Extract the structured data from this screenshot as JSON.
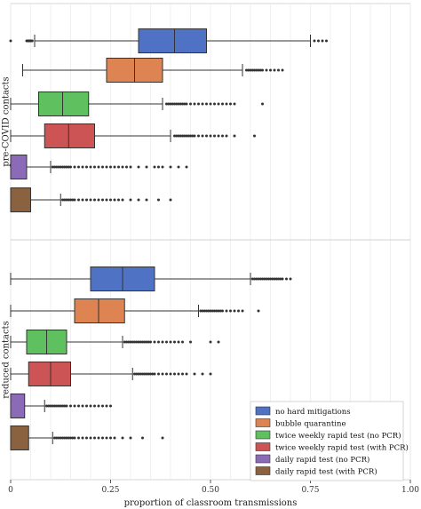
{
  "chart_data": {
    "type": "boxplot",
    "orientation": "horizontal",
    "xlabel": "proportion of classroom transmissions",
    "xlim": [
      0,
      1.0
    ],
    "xticks": [
      0,
      0.25,
      0.5,
      0.75,
      1.0
    ],
    "xtick_labels": [
      "0",
      "0.25",
      "0.50",
      "0.75",
      "1.00"
    ],
    "grid": "vertical",
    "legend_position": "bottom-right",
    "colors": {
      "no hard mitigations": "#4f72c4",
      "bubble quarantine": "#dd8452",
      "twice weekly rapid test (no PCR)": "#5ec05f",
      "twice weekly rapid test (with PCR)": "#cc5454",
      "daily rapid test (no PCR)": "#8b6bb8",
      "daily rapid test (with PCR)": "#8a6240"
    },
    "series": [
      {
        "name": "no hard mitigations"
      },
      {
        "name": "bubble quarantine"
      },
      {
        "name": "twice weekly rapid test (no PCR)"
      },
      {
        "name": "twice weekly rapid test (with PCR)"
      },
      {
        "name": "daily rapid test (no PCR)"
      },
      {
        "name": "daily rapid test (with PCR)"
      }
    ],
    "panels": [
      {
        "label": "pre-COVID contacts",
        "boxes": [
          {
            "name": "no hard mitigations",
            "whisker_low": 0.06,
            "q1": 0.32,
            "median": 0.41,
            "q3": 0.49,
            "whisker_high": 0.75,
            "outliers": [
              0.0,
              0.04,
              0.042,
              0.044,
              0.046,
              0.048,
              0.05,
              0.052,
              0.054,
              0.76,
              0.77,
              0.78,
              0.79
            ]
          },
          {
            "name": "bubble quarantine",
            "whisker_low": 0.03,
            "q1": 0.24,
            "median": 0.31,
            "q3": 0.38,
            "whisker_high": 0.58,
            "outliers": [
              0.59,
              0.595,
              0.6,
              0.605,
              0.61,
              0.615,
              0.62,
              0.625,
              0.63,
              0.64,
              0.65,
              0.66,
              0.67,
              0.68
            ]
          },
          {
            "name": "twice weekly rapid test (no PCR)",
            "whisker_low": 0.0,
            "q1": 0.07,
            "median": 0.13,
            "q3": 0.195,
            "whisker_high": 0.38,
            "outliers": [
              0.39,
              0.395,
              0.4,
              0.405,
              0.41,
              0.415,
              0.42,
              0.425,
              0.43,
              0.435,
              0.44,
              0.45,
              0.46,
              0.47,
              0.48,
              0.49,
              0.5,
              0.51,
              0.52,
              0.53,
              0.54,
              0.55,
              0.56,
              0.63
            ]
          },
          {
            "name": "twice weekly rapid test (with PCR)",
            "whisker_low": 0.0,
            "q1": 0.085,
            "median": 0.145,
            "q3": 0.21,
            "whisker_high": 0.4,
            "outliers": [
              0.41,
              0.415,
              0.42,
              0.425,
              0.43,
              0.435,
              0.44,
              0.445,
              0.45,
              0.455,
              0.46,
              0.47,
              0.48,
              0.49,
              0.5,
              0.51,
              0.52,
              0.53,
              0.54,
              0.56,
              0.61
            ]
          },
          {
            "name": "daily rapid test (no PCR)",
            "whisker_low": 0.0,
            "q1": 0.0,
            "median": 0.0,
            "q3": 0.04,
            "whisker_high": 0.1,
            "outliers": [
              0.105,
              0.11,
              0.115,
              0.12,
              0.125,
              0.13,
              0.135,
              0.14,
              0.145,
              0.15,
              0.16,
              0.17,
              0.18,
              0.19,
              0.2,
              0.21,
              0.22,
              0.23,
              0.24,
              0.25,
              0.26,
              0.27,
              0.28,
              0.29,
              0.3,
              0.32,
              0.34,
              0.36,
              0.37,
              0.38,
              0.4,
              0.42,
              0.44
            ]
          },
          {
            "name": "daily rapid test (with PCR)",
            "whisker_low": 0.0,
            "q1": 0.0,
            "median": 0.0,
            "q3": 0.05,
            "whisker_high": 0.125,
            "outliers": [
              0.13,
              0.135,
              0.14,
              0.145,
              0.15,
              0.155,
              0.16,
              0.17,
              0.18,
              0.19,
              0.2,
              0.21,
              0.22,
              0.23,
              0.24,
              0.25,
              0.26,
              0.27,
              0.28,
              0.3,
              0.32,
              0.34,
              0.37,
              0.4
            ]
          }
        ]
      },
      {
        "label": "reduced contacts",
        "boxes": [
          {
            "name": "no hard mitigations",
            "whisker_low": 0.0,
            "q1": 0.2,
            "median": 0.28,
            "q3": 0.36,
            "whisker_high": 0.6,
            "outliers": [
              0.605,
              0.61,
              0.615,
              0.62,
              0.625,
              0.63,
              0.635,
              0.64,
              0.645,
              0.65,
              0.655,
              0.66,
              0.665,
              0.67,
              0.675,
              0.68,
              0.69,
              0.7
            ]
          },
          {
            "name": "bubble quarantine",
            "whisker_low": 0.0,
            "q1": 0.16,
            "median": 0.22,
            "q3": 0.285,
            "whisker_high": 0.47,
            "outliers": [
              0.475,
              0.48,
              0.485,
              0.49,
              0.495,
              0.5,
              0.505,
              0.51,
              0.515,
              0.52,
              0.525,
              0.53,
              0.54,
              0.55,
              0.56,
              0.57,
              0.58,
              0.62
            ]
          },
          {
            "name": "twice weekly rapid test (no PCR)",
            "whisker_low": 0.0,
            "q1": 0.04,
            "median": 0.09,
            "q3": 0.14,
            "whisker_high": 0.28,
            "outliers": [
              0.285,
              0.29,
              0.295,
              0.3,
              0.305,
              0.31,
              0.315,
              0.32,
              0.325,
              0.33,
              0.335,
              0.34,
              0.345,
              0.35,
              0.36,
              0.37,
              0.38,
              0.39,
              0.4,
              0.41,
              0.42,
              0.43,
              0.45,
              0.5,
              0.52
            ]
          },
          {
            "name": "twice weekly rapid test (with PCR)",
            "whisker_low": 0.0,
            "q1": 0.045,
            "median": 0.1,
            "q3": 0.15,
            "whisker_high": 0.305,
            "outliers": [
              0.31,
              0.315,
              0.32,
              0.325,
              0.33,
              0.335,
              0.34,
              0.345,
              0.35,
              0.355,
              0.36,
              0.37,
              0.38,
              0.39,
              0.4,
              0.41,
              0.42,
              0.43,
              0.44,
              0.46,
              0.48,
              0.5
            ]
          },
          {
            "name": "daily rapid test (no PCR)",
            "whisker_low": 0.0,
            "q1": 0.0,
            "median": 0.0,
            "q3": 0.035,
            "whisker_high": 0.085,
            "outliers": [
              0.09,
              0.095,
              0.1,
              0.105,
              0.11,
              0.115,
              0.12,
              0.125,
              0.13,
              0.135,
              0.14,
              0.15,
              0.16,
              0.17,
              0.18,
              0.19,
              0.2,
              0.21,
              0.22,
              0.23,
              0.24,
              0.25
            ]
          },
          {
            "name": "daily rapid test (with PCR)",
            "whisker_low": 0.0,
            "q1": 0.0,
            "median": 0.0,
            "q3": 0.045,
            "whisker_high": 0.105,
            "outliers": [
              0.11,
              0.115,
              0.12,
              0.125,
              0.13,
              0.135,
              0.14,
              0.145,
              0.15,
              0.155,
              0.16,
              0.17,
              0.18,
              0.19,
              0.2,
              0.21,
              0.22,
              0.23,
              0.24,
              0.25,
              0.26,
              0.28,
              0.3,
              0.33,
              0.38
            ]
          }
        ]
      }
    ]
  }
}
